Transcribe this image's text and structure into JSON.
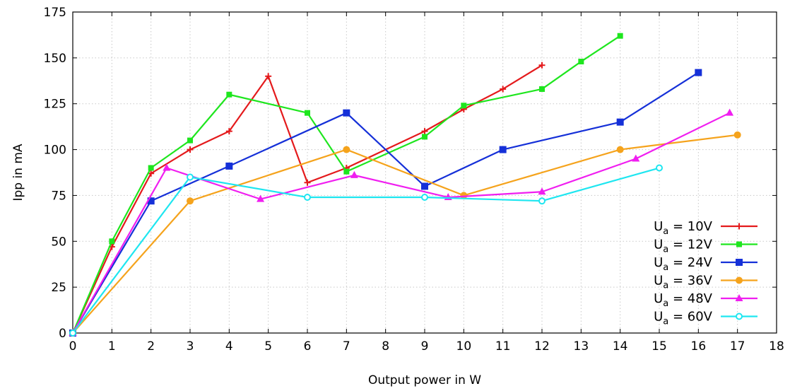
{
  "chart_data": {
    "type": "line",
    "xlabel": "Output power in W",
    "ylabel": "Ipp in mA",
    "xlim": [
      0,
      18
    ],
    "ylim": [
      0,
      175
    ],
    "xticks": [
      0,
      1,
      2,
      3,
      4,
      5,
      6,
      7,
      8,
      9,
      10,
      11,
      12,
      13,
      14,
      15,
      16,
      17,
      18
    ],
    "yticks": [
      0,
      25,
      50,
      75,
      100,
      125,
      150,
      175
    ],
    "grid": true,
    "legend_position": "bottom-right",
    "series": [
      {
        "name": "10V",
        "color": "#e41a1c",
        "marker": "plus",
        "x": [
          0,
          1,
          2,
          3,
          4,
          5,
          6,
          7,
          9,
          10,
          11,
          12
        ],
        "y": [
          0,
          47,
          87,
          100,
          110,
          140,
          82,
          90,
          110,
          122,
          133,
          146
        ]
      },
      {
        "name": "12V",
        "color": "#1ee61e",
        "marker": "square-small",
        "x": [
          0,
          1,
          2,
          3,
          4,
          6,
          7,
          9,
          10,
          12,
          13,
          14
        ],
        "y": [
          0,
          50,
          90,
          105,
          130,
          120,
          88,
          107,
          124,
          133,
          148,
          162
        ]
      },
      {
        "name": "24V",
        "color": "#1530d8",
        "marker": "square",
        "x": [
          0,
          2,
          4,
          7,
          9,
          11,
          14,
          16
        ],
        "y": [
          0,
          72,
          91,
          120,
          80,
          100,
          115,
          142
        ]
      },
      {
        "name": "36V",
        "color": "#f5a31c",
        "marker": "circle",
        "x": [
          0,
          3,
          7,
          10,
          14,
          17
        ],
        "y": [
          0,
          72,
          100,
          75,
          100,
          108
        ]
      },
      {
        "name": "48V",
        "color": "#f01ef0",
        "marker": "triangle",
        "x": [
          0,
          2.4,
          4.8,
          7.2,
          9.6,
          12,
          14.4,
          16.8
        ],
        "y": [
          0,
          90,
          73,
          86,
          74,
          77,
          95,
          120
        ]
      },
      {
        "name": "60V",
        "color": "#1ee6f0",
        "marker": "circle-open",
        "x": [
          0,
          3,
          6,
          9,
          12,
          15
        ],
        "y": [
          0,
          85,
          74,
          74,
          72,
          90
        ]
      }
    ],
    "legend_prefix": "U",
    "legend_subscript": "a",
    "legend_sep": " = "
  }
}
